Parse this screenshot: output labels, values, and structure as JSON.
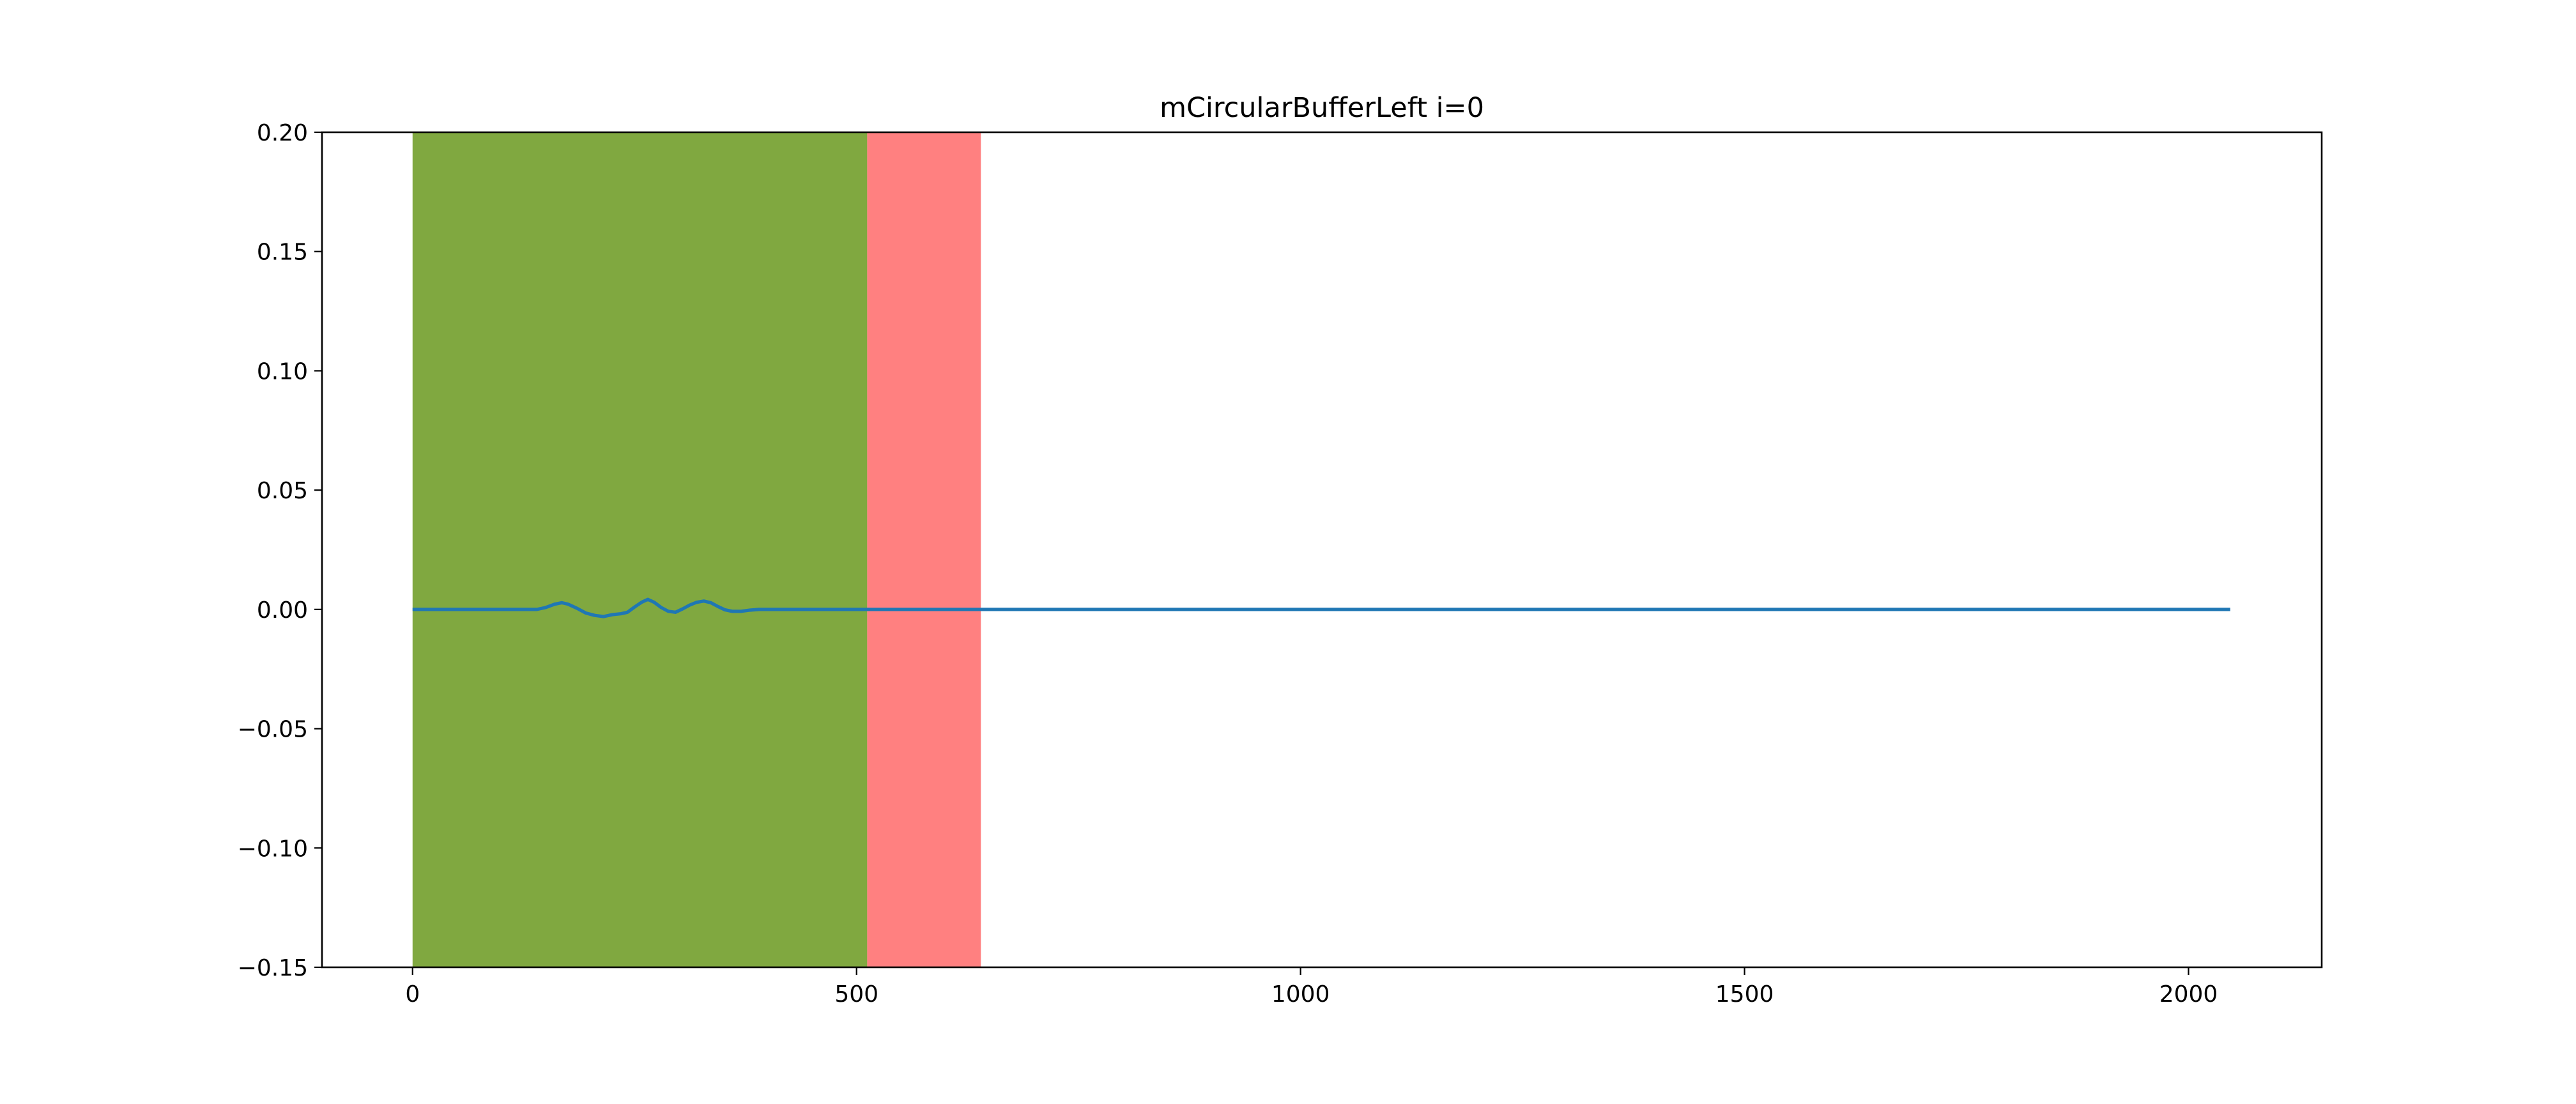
{
  "chart_data": {
    "type": "line",
    "title": "mCircularBufferLeft i=0",
    "xlabel": "",
    "ylabel": "",
    "xlim": [
      -102,
      2150
    ],
    "ylim": [
      -0.15,
      0.2
    ],
    "xticks": [
      0,
      500,
      1000,
      1500,
      2000
    ],
    "yticks": [
      0.2,
      0.15,
      0.1,
      0.05,
      0.0,
      -0.05,
      -0.1,
      -0.15
    ],
    "xtick_labels": [
      "0",
      "500",
      "1000",
      "1500",
      "2000"
    ],
    "ytick_labels": [
      "0.20",
      "0.15",
      "0.10",
      "0.05",
      "0.00",
      "−0.05",
      "−0.10",
      "−0.15"
    ],
    "grid": false,
    "spans": [
      {
        "x0": 0,
        "x1": 512,
        "color": "#80a840"
      },
      {
        "x0": 512,
        "x1": 640,
        "color": "#ff8080"
      }
    ],
    "series": [
      {
        "color": "#1f77b4",
        "points": [
          [
            0,
            0.0
          ],
          [
            100,
            0.0
          ],
          [
            140,
            0.0
          ],
          [
            150,
            0.0008
          ],
          [
            160,
            0.0022
          ],
          [
            168,
            0.0028
          ],
          [
            175,
            0.0022
          ],
          [
            185,
            0.0005
          ],
          [
            195,
            -0.0015
          ],
          [
            205,
            -0.0025
          ],
          [
            215,
            -0.003
          ],
          [
            225,
            -0.0022
          ],
          [
            235,
            -0.0018
          ],
          [
            242,
            -0.0012
          ],
          [
            250,
            0.001
          ],
          [
            258,
            0.003
          ],
          [
            265,
            0.0042
          ],
          [
            272,
            0.003
          ],
          [
            280,
            0.0008
          ],
          [
            288,
            -0.0008
          ],
          [
            296,
            -0.0012
          ],
          [
            304,
            0.0002
          ],
          [
            312,
            0.0018
          ],
          [
            320,
            0.003
          ],
          [
            328,
            0.0035
          ],
          [
            336,
            0.0028
          ],
          [
            344,
            0.0012
          ],
          [
            352,
            -0.0002
          ],
          [
            360,
            -0.0008
          ],
          [
            370,
            -0.0008
          ],
          [
            380,
            -0.0003
          ],
          [
            390,
            0.0
          ],
          [
            450,
            0.0
          ],
          [
            600,
            0.0
          ],
          [
            1000,
            0.0
          ],
          [
            1500,
            0.0
          ],
          [
            2047,
            0.0
          ]
        ]
      }
    ]
  }
}
